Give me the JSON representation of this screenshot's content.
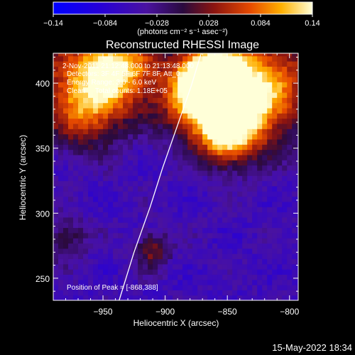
{
  "chart_data": {
    "type": "heatmap",
    "title": "Reconstructed RHESSI Image",
    "xlabel": "Heliocentric X (arcsec)",
    "ylabel": "Heliocentric Y (arcsec)",
    "xlim": [
      -990,
      -793
    ],
    "ylim": [
      233,
      423
    ],
    "x_ticks": [
      -950,
      -900,
      -850,
      -800
    ],
    "y_ticks": [
      250,
      300,
      350,
      400
    ],
    "colorbar": {
      "min": -0.14,
      "max": 0.14,
      "ticks": [
        "−0.14",
        "−0.084",
        "−0.028",
        "0.028",
        "0.084",
        "0.14"
      ],
      "unit_label": "(photons cm⁻² s⁻¹ asec⁻²)"
    },
    "annotations": [
      "2-Nov-2011 21:12:48.000 to 21:13:48.000",
      "Detectors: 3F 4F 5F 6F 7F 8F, Att_0",
      "Energy Range: 3.0 - 6.0 keV",
      "Clean     Total counts: 1.18E+05"
    ],
    "peak_label": "Position of Peak = [-868,388]",
    "peak": {
      "x": -868,
      "y": 388,
      "value": 0.14
    },
    "emission_sources": [
      {
        "x": -868,
        "y": 388,
        "value": 0.14,
        "width": 22
      },
      {
        "x": -862,
        "y": 408,
        "value": 0.115,
        "width": 18
      },
      {
        "x": -838,
        "y": 378,
        "value": 0.085,
        "width": 22
      },
      {
        "x": -812,
        "y": 405,
        "value": 0.06,
        "width": 30
      },
      {
        "x": -975,
        "y": 400,
        "value": 0.06,
        "width": 26
      },
      {
        "x": -930,
        "y": 408,
        "value": 0.055,
        "width": 22
      },
      {
        "x": -960,
        "y": 375,
        "value": 0.03,
        "width": 18
      },
      {
        "x": -945,
        "y": 415,
        "value": 0.04,
        "width": 16
      },
      {
        "x": -850,
        "y": 355,
        "value": 0.035,
        "width": 14
      },
      {
        "x": -910,
        "y": 272,
        "value": 0.03,
        "width": 10
      },
      {
        "x": -980,
        "y": 280,
        "value": 0.01,
        "width": 12
      }
    ],
    "limb_curve": [
      {
        "x": -937,
        "y": 233
      },
      {
        "x": -925,
        "y": 270
      },
      {
        "x": -912,
        "y": 305
      },
      {
        "x": -902,
        "y": 335
      },
      {
        "x": -891,
        "y": 365
      },
      {
        "x": -879,
        "y": 398
      },
      {
        "x": -871,
        "y": 423
      }
    ]
  },
  "footer": {
    "date": "15-May-2022 18:34"
  }
}
